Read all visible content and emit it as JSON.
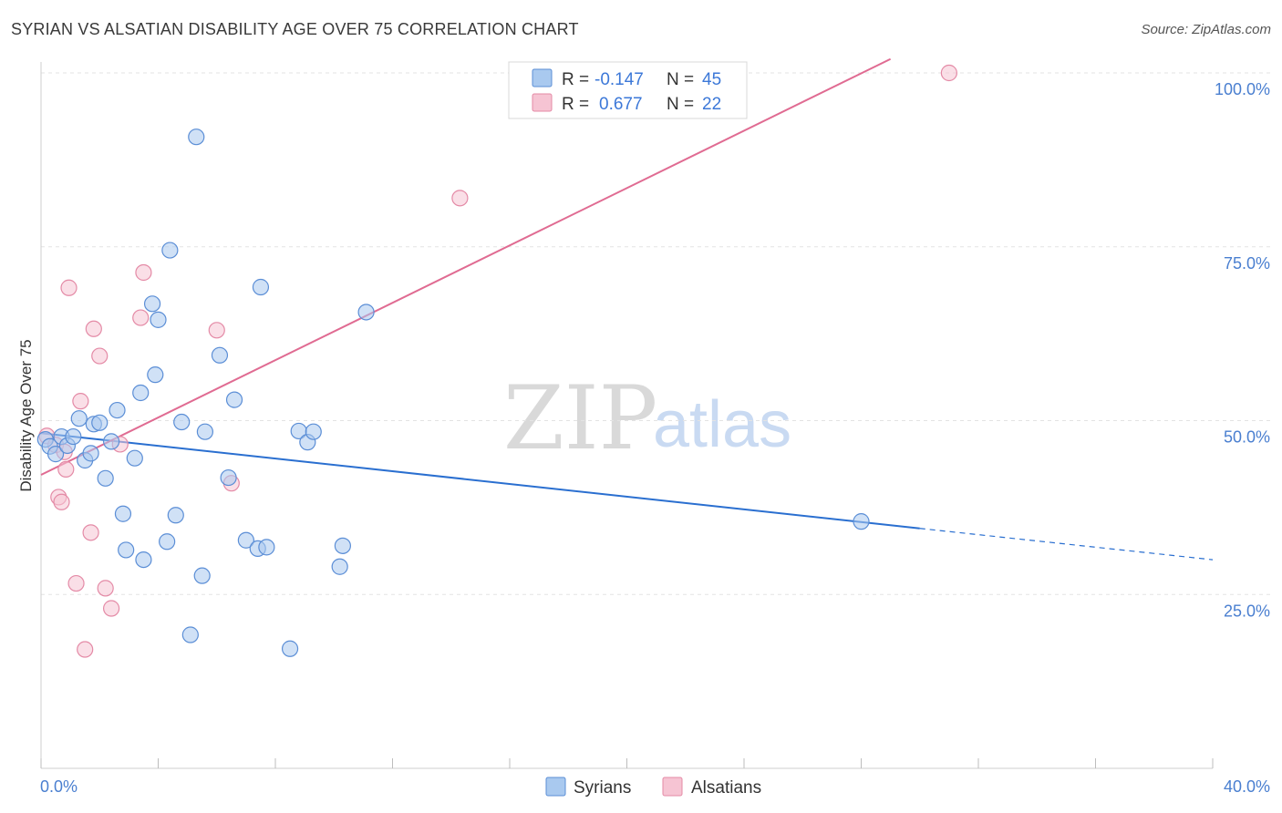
{
  "title": "SYRIAN VS ALSATIAN DISABILITY AGE OVER 75 CORRELATION CHART",
  "source": "Source: ZipAtlas.com",
  "watermark": {
    "left": "ZIP",
    "right": "atlas"
  },
  "legend_top": {
    "rows": [
      {
        "r_label": "R =",
        "r_value": "-0.147",
        "n_label": "N =",
        "n_value": "45"
      },
      {
        "r_label": "R =",
        "r_value": "0.677",
        "n_label": "N =",
        "n_value": "22"
      }
    ]
  },
  "legend_bottom": {
    "syrians": "Syrians",
    "alsatians": "Alsatians"
  },
  "colors": {
    "syrians_fill": "#a9c9ef",
    "syrians_stroke": "#5b8ed6",
    "syrians_line": "#2a6fd0",
    "alsatians_fill": "#f6c4d3",
    "alsatians_stroke": "#e48aa6",
    "alsatians_line": "#e06b92",
    "tick_label": "#4a7fd0",
    "grid": "#e3e3e3"
  },
  "chart_data": {
    "type": "scatter",
    "title": "SYRIAN VS ALSATIAN DISABILITY AGE OVER 75 CORRELATION CHART",
    "xlabel": "",
    "ylabel": "Disability Age Over 75",
    "xlim": [
      0,
      40
    ],
    "ylim": [
      0,
      102
    ],
    "x_tick_labels": {
      "left": "0.0%",
      "right": "40.0%"
    },
    "y_ticks": [
      {
        "value": 100,
        "label": "100.0%"
      },
      {
        "value": 75,
        "label": "75.0%"
      },
      {
        "value": 50,
        "label": "50.0%"
      },
      {
        "value": 25,
        "label": "25.0%"
      }
    ],
    "series": [
      {
        "name": "Syrians",
        "points": [
          [
            0.15,
            47.3
          ],
          [
            0.3,
            46.3
          ],
          [
            0.5,
            45.2
          ],
          [
            0.7,
            47.7
          ],
          [
            0.9,
            46.4
          ],
          [
            1.1,
            47.7
          ],
          [
            1.3,
            50.3
          ],
          [
            1.5,
            44.3
          ],
          [
            1.7,
            45.3
          ],
          [
            1.8,
            49.5
          ],
          [
            2.0,
            49.7
          ],
          [
            2.2,
            41.7
          ],
          [
            2.4,
            47.0
          ],
          [
            2.6,
            51.5
          ],
          [
            2.8,
            36.6
          ],
          [
            2.9,
            31.4
          ],
          [
            3.2,
            44.6
          ],
          [
            3.4,
            54.0
          ],
          [
            3.5,
            30.0
          ],
          [
            3.8,
            66.8
          ],
          [
            3.9,
            56.6
          ],
          [
            4.0,
            64.5
          ],
          [
            4.3,
            32.6
          ],
          [
            4.4,
            74.5
          ],
          [
            4.6,
            36.4
          ],
          [
            4.8,
            49.8
          ],
          [
            5.1,
            19.2
          ],
          [
            5.3,
            90.8
          ],
          [
            5.5,
            27.7
          ],
          [
            5.6,
            48.4
          ],
          [
            6.1,
            59.4
          ],
          [
            6.4,
            41.8
          ],
          [
            6.6,
            53.0
          ],
          [
            7.0,
            32.8
          ],
          [
            7.4,
            31.6
          ],
          [
            7.5,
            69.2
          ],
          [
            7.7,
            31.8
          ],
          [
            8.5,
            17.2
          ],
          [
            8.8,
            48.5
          ],
          [
            9.1,
            46.9
          ],
          [
            9.3,
            48.4
          ],
          [
            10.2,
            29.0
          ],
          [
            10.3,
            32.0
          ],
          [
            11.1,
            65.6
          ],
          [
            28.0,
            35.5
          ]
        ]
      },
      {
        "name": "Alsatians",
        "points": [
          [
            0.2,
            47.8
          ],
          [
            0.5,
            46.5
          ],
          [
            0.6,
            39.0
          ],
          [
            0.7,
            38.3
          ],
          [
            0.8,
            45.5
          ],
          [
            0.85,
            43.0
          ],
          [
            0.95,
            69.1
          ],
          [
            1.2,
            26.6
          ],
          [
            1.35,
            52.8
          ],
          [
            1.5,
            17.1
          ],
          [
            1.7,
            33.9
          ],
          [
            1.8,
            63.2
          ],
          [
            2.0,
            59.3
          ],
          [
            2.2,
            25.9
          ],
          [
            2.4,
            23.0
          ],
          [
            2.7,
            46.6
          ],
          [
            3.4,
            64.8
          ],
          [
            3.5,
            71.3
          ],
          [
            6.0,
            63.0
          ],
          [
            6.5,
            41.0
          ],
          [
            14.3,
            82.0
          ],
          [
            31.0,
            100.0
          ]
        ]
      }
    ],
    "trend_lines": [
      {
        "name": "Syrians",
        "x_start": 0,
        "y_start": 48.2,
        "x_solid_end": 30.0,
        "y_solid_end": 34.5,
        "x_dashed_end": 40,
        "y_dashed_end": 30.0
      },
      {
        "name": "Alsatians",
        "x_start": 0,
        "y_start": 42.2,
        "x_end": 29.0,
        "y_end": 102.0
      }
    ]
  }
}
